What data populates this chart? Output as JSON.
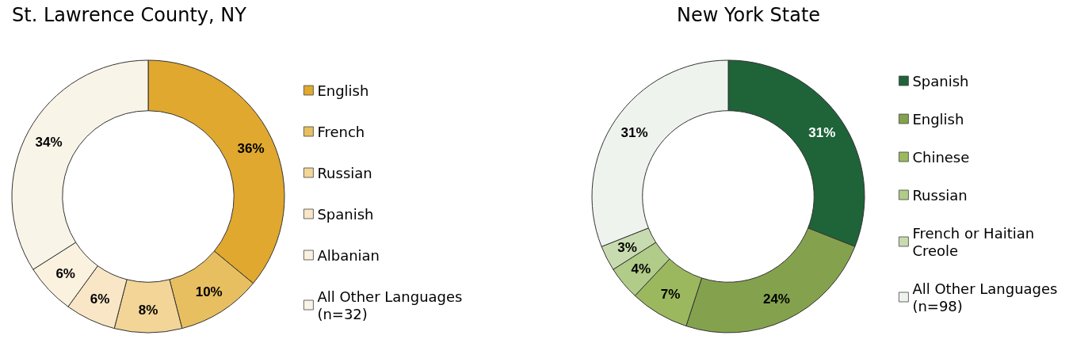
{
  "chart_data": [
    {
      "type": "donut",
      "title": "St. Lawrence County, NY",
      "categories": [
        "English",
        "French",
        "Russian",
        "Spanish",
        "Albanian",
        "All Other Languages (n=32)"
      ],
      "values": [
        36,
        10,
        8,
        6,
        6,
        34
      ],
      "colors": [
        "#e0a82e",
        "#e8bf60",
        "#f2d597",
        "#f8e6c6",
        "#fbf1df",
        "#f9f4e8"
      ],
      "value_labels": [
        "36%",
        "10%",
        "8%",
        "6%",
        "6%",
        "34%"
      ],
      "legend": "right"
    },
    {
      "type": "donut",
      "title": "New York State",
      "categories": [
        "Spanish",
        "English",
        "Chinese",
        "Russian",
        "French or Haitian Creole",
        "All Other Languages (n=98)"
      ],
      "values": [
        31,
        24,
        7,
        4,
        3,
        31
      ],
      "colors": [
        "#1f6339",
        "#84a24d",
        "#9bb85f",
        "#b1cb88",
        "#c8dbb0",
        "#eef3ee"
      ],
      "value_labels": [
        "31%",
        "24%",
        "7%",
        "4%",
        "3%",
        "31%"
      ],
      "legend": "right"
    }
  ]
}
